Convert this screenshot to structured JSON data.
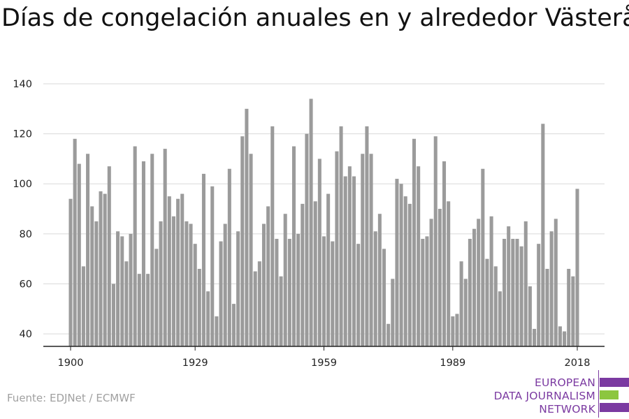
{
  "title": "Días de congelación anuales en y alrededor Västerås",
  "source": "Fuente: EDJNet / ECMWF",
  "logo": {
    "lines": [
      "EUROPEAN",
      "DATA JOURNALISM",
      "NETWORK"
    ],
    "colors": {
      "purple": "#7b3aa1",
      "green": "#8cc63f"
    }
  },
  "colors": {
    "bar": "#9b9b9b",
    "grid": "#d9d9d9",
    "axis": "#222222",
    "text": "#222222"
  },
  "chart_data": {
    "type": "bar",
    "title": "Días de congelación anuales en y alrededor Västerås",
    "xlabel": "",
    "ylabel": "",
    "ylim": [
      35,
      140
    ],
    "yticks": [
      40,
      60,
      80,
      100,
      120,
      140
    ],
    "xticks": [
      1900,
      1929,
      1959,
      1989,
      2018
    ],
    "grid": true,
    "x": [
      1900,
      1901,
      1902,
      1903,
      1904,
      1905,
      1906,
      1907,
      1908,
      1909,
      1910,
      1911,
      1912,
      1913,
      1914,
      1915,
      1916,
      1917,
      1918,
      1919,
      1920,
      1921,
      1922,
      1923,
      1924,
      1925,
      1926,
      1927,
      1928,
      1929,
      1930,
      1931,
      1932,
      1933,
      1934,
      1935,
      1936,
      1937,
      1938,
      1939,
      1940,
      1941,
      1942,
      1943,
      1944,
      1945,
      1946,
      1947,
      1948,
      1949,
      1950,
      1951,
      1952,
      1953,
      1954,
      1955,
      1956,
      1957,
      1958,
      1959,
      1960,
      1961,
      1962,
      1963,
      1964,
      1965,
      1966,
      1967,
      1968,
      1969,
      1970,
      1971,
      1972,
      1973,
      1974,
      1975,
      1976,
      1977,
      1978,
      1979,
      1980,
      1981,
      1982,
      1983,
      1984,
      1985,
      1986,
      1987,
      1988,
      1989,
      1990,
      1991,
      1992,
      1993,
      1994,
      1995,
      1996,
      1997,
      1998,
      1999,
      2000,
      2001,
      2002,
      2003,
      2004,
      2005,
      2006,
      2007,
      2008,
      2009,
      2010,
      2011,
      2012,
      2013,
      2014,
      2015,
      2016,
      2017,
      2018
    ],
    "values": [
      94,
      118,
      108,
      67,
      112,
      91,
      85,
      97,
      96,
      107,
      60,
      81,
      79,
      69,
      80,
      115,
      64,
      109,
      64,
      112,
      74,
      85,
      114,
      95,
      87,
      94,
      96,
      85,
      84,
      76,
      66,
      104,
      57,
      99,
      47,
      77,
      84,
      106,
      52,
      81,
      119,
      130,
      112,
      65,
      69,
      84,
      91,
      123,
      78,
      63,
      88,
      78,
      115,
      80,
      92,
      120,
      134,
      93,
      110,
      79,
      96,
      77,
      113,
      123,
      103,
      107,
      103,
      76,
      112,
      123,
      112,
      81,
      88,
      74,
      44,
      62,
      102,
      100,
      95,
      92,
      118,
      107,
      78,
      79,
      86,
      119,
      90,
      109,
      93,
      47,
      48,
      69,
      62,
      78,
      82,
      86,
      106,
      70,
      87,
      67,
      57,
      78,
      83,
      78,
      78,
      75,
      85,
      59,
      42,
      76,
      124,
      66,
      81,
      86,
      43,
      41,
      66,
      63,
      98
    ]
  }
}
